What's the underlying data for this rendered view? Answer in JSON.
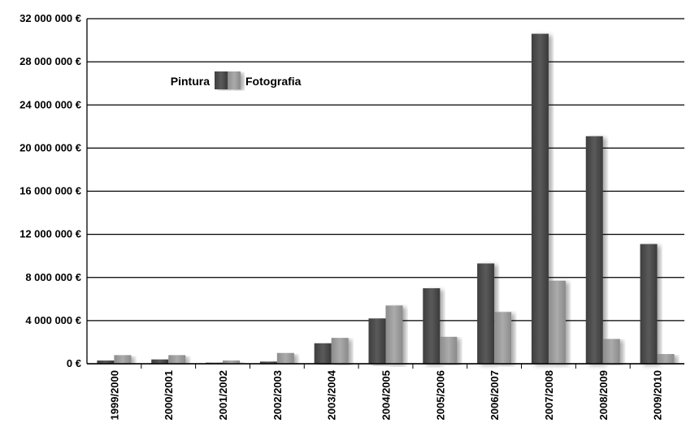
{
  "chart_data": {
    "type": "bar",
    "title": "",
    "xlabel": "",
    "ylabel": "",
    "ylim": [
      0,
      32000000
    ],
    "yticks": [
      0,
      4000000,
      8000000,
      12000000,
      16000000,
      20000000,
      24000000,
      28000000,
      32000000
    ],
    "ytick_labels": [
      "0 €",
      "4 000 000 €",
      "8 000 000 €",
      "12 000 000 €",
      "16 000 000 €",
      "20 000 000 €",
      "24 000 000 €",
      "28 000 000 €",
      "32 000 000 €"
    ],
    "categories": [
      "1999/2000",
      "2000/2001",
      "2001/2002",
      "2002/2003",
      "2003/2004",
      "2004/2005",
      "2005/2006",
      "2006/2007",
      "2007/2008",
      "2008/2009",
      "2009/2010"
    ],
    "series": [
      {
        "name": "Pintura",
        "color": "#4a4a4a",
        "values": [
          300000,
          400000,
          100000,
          200000,
          1900000,
          4200000,
          7000000,
          9300000,
          30600000,
          21100000,
          11100000
        ]
      },
      {
        "name": "Fotografia",
        "color": "#9a9a9a",
        "values": [
          800000,
          800000,
          300000,
          1000000,
          2400000,
          5400000,
          2500000,
          4800000,
          7700000,
          2300000,
          900000
        ]
      }
    ],
    "grid": true,
    "legend_position": "top-left"
  }
}
